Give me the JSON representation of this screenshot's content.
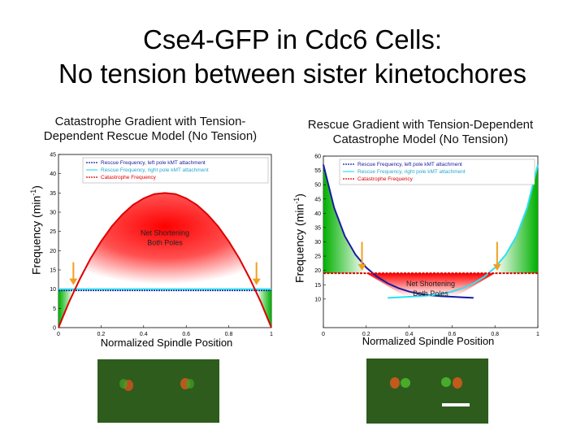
{
  "slide": {
    "title_line1": "Cse4-GFP in Cdc6 Cells:",
    "title_line2": "No tension between sister kinetochores"
  },
  "chart_data": [
    {
      "type": "line",
      "title": "Catastrophe Gradient with Tension-Dependent Rescue Model (No Tension)",
      "title_line1": "Catastrophe Gradient with Tension-",
      "title_line2": "Dependent Rescue Model (No Tension)",
      "xlabel": "Normalized Spindle Position",
      "ylabel_main": "Frequency (min",
      "ylabel_sup": "-1",
      "ylabel_end": ")",
      "xlim": [
        0,
        1
      ],
      "ylim": [
        0,
        45
      ],
      "xticks": [
        "0",
        "0.2",
        "0.4",
        "0.6",
        "0.8",
        "1"
      ],
      "yticks": [
        "0",
        "5",
        "10",
        "15",
        "20",
        "25",
        "30",
        "35",
        "40",
        "45"
      ],
      "legend": [
        "Rescue Frequency, left pole kMT attachment",
        "Rescue Frequency, right pole kMT attachment",
        "Catastrophe Frequency"
      ],
      "annotation_line1": "Net Shortening",
      "annotation_line2": "Both Poles",
      "series": [
        {
          "name": "Rescue Frequency, left pole kMT attachment",
          "color": "#1a1aa0",
          "x": [
            0,
            1
          ],
          "y": [
            9.7,
            9.7
          ]
        },
        {
          "name": "Rescue Frequency, right pole kMT attachment",
          "color": "#2ee0f0",
          "x": [
            0,
            1
          ],
          "y": [
            10.0,
            10.0
          ]
        },
        {
          "name": "Catastrophe Frequency",
          "color": "#dd0000",
          "x": [
            0,
            0.05,
            0.1,
            0.15,
            0.2,
            0.25,
            0.3,
            0.35,
            0.4,
            0.45,
            0.5,
            0.55,
            0.6,
            0.65,
            0.7,
            0.75,
            0.8,
            0.85,
            0.9,
            0.95,
            1
          ],
          "y": [
            0,
            6.7,
            12.6,
            17.9,
            22.4,
            26.3,
            29.4,
            31.9,
            33.6,
            34.7,
            35,
            34.7,
            33.6,
            31.9,
            29.4,
            26.3,
            22.4,
            17.9,
            12.6,
            6.7,
            0
          ]
        }
      ],
      "arrows_x": [
        0.07,
        0.93
      ]
    },
    {
      "type": "line",
      "title": "Rescue Gradient with Tension-Dependent Catastrophe Model (No Tension)",
      "title_line1": "Rescue Gradient with Tension-Dependent",
      "title_line2": "Catastrophe Model (No Tension)",
      "xlabel": "Normalized Spindle Position",
      "ylabel_main": "Frequency (min",
      "ylabel_sup": "-1",
      "ylabel_end": ")",
      "xlim": [
        0,
        1
      ],
      "ylim": [
        0,
        60
      ],
      "xticks": [
        "0",
        "0.2",
        "0.4",
        "0.6",
        "0.8",
        "1"
      ],
      "yticks": [
        "10",
        "15",
        "20",
        "25",
        "30",
        "35",
        "40",
        "45",
        "50",
        "55",
        "60"
      ],
      "legend": [
        "Rescue Frequency, left pole kMT attachment",
        "Rescue Frequency, right pole kMT attachment",
        "Catastrophe Frequency"
      ],
      "annotation_line1": "Net Shortening",
      "annotation_line2": "Both Poles",
      "series": [
        {
          "name": "Rescue Frequency, left pole kMT attachment",
          "color": "#1a1aa0",
          "x": [
            0,
            0.05,
            0.1,
            0.15,
            0.2,
            0.25,
            0.3,
            0.35,
            0.4,
            0.45,
            0.5,
            0.55,
            0.6,
            0.65,
            0.7
          ],
          "y": [
            57,
            42,
            32,
            25.5,
            21,
            17.8,
            15.5,
            13.8,
            12.6,
            11.8,
            11.3,
            11,
            10.8,
            10.6,
            10.4
          ]
        },
        {
          "name": "Rescue Frequency, right pole kMT attachment",
          "color": "#2ee0f0",
          "x": [
            0.3,
            0.35,
            0.4,
            0.45,
            0.5,
            0.55,
            0.6,
            0.65,
            0.7,
            0.75,
            0.8,
            0.85,
            0.9,
            0.95,
            1
          ],
          "y": [
            10.4,
            10.6,
            10.8,
            11,
            11.3,
            11.8,
            12.6,
            13.8,
            15.5,
            17.8,
            21,
            25.5,
            32,
            42,
            57
          ]
        },
        {
          "name": "Catastrophe Frequency",
          "color": "#dd0000",
          "x": [
            0,
            1
          ],
          "y": [
            19,
            19
          ]
        }
      ],
      "arrows_x": [
        0.18,
        0.81
      ]
    }
  ]
}
